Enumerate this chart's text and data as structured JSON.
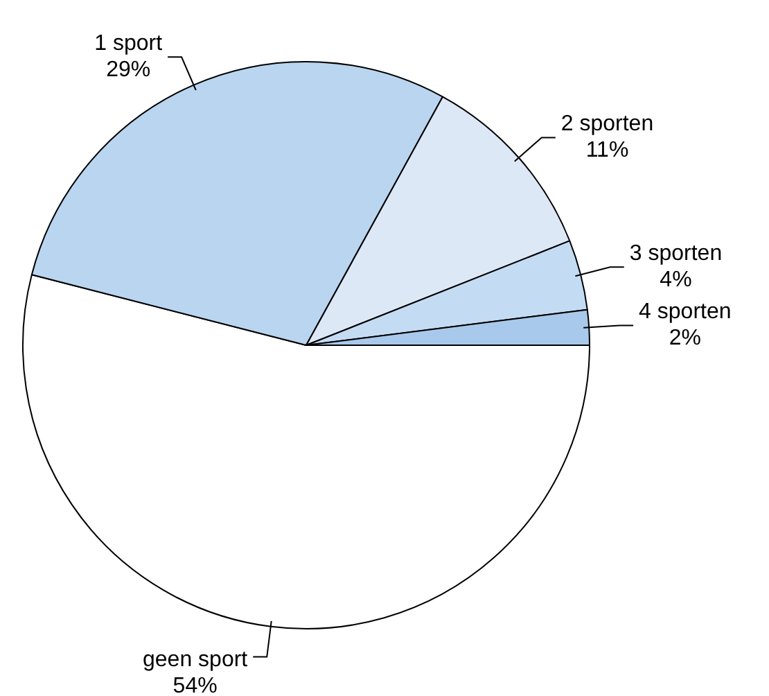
{
  "chart_data": {
    "type": "pie",
    "categories": [
      "geen sport",
      "1 sport",
      "2 sporten",
      "3 sporten",
      "4 sporten"
    ],
    "values": [
      54,
      29,
      11,
      4,
      2
    ],
    "value_labels": [
      "54%",
      "29%",
      "11%",
      "4%",
      "2%"
    ],
    "colors": [
      "#ffffff",
      "#b9d5f0",
      "#dde8f7",
      "#c4dcf3",
      "#a9c9ec"
    ],
    "legend": false
  }
}
